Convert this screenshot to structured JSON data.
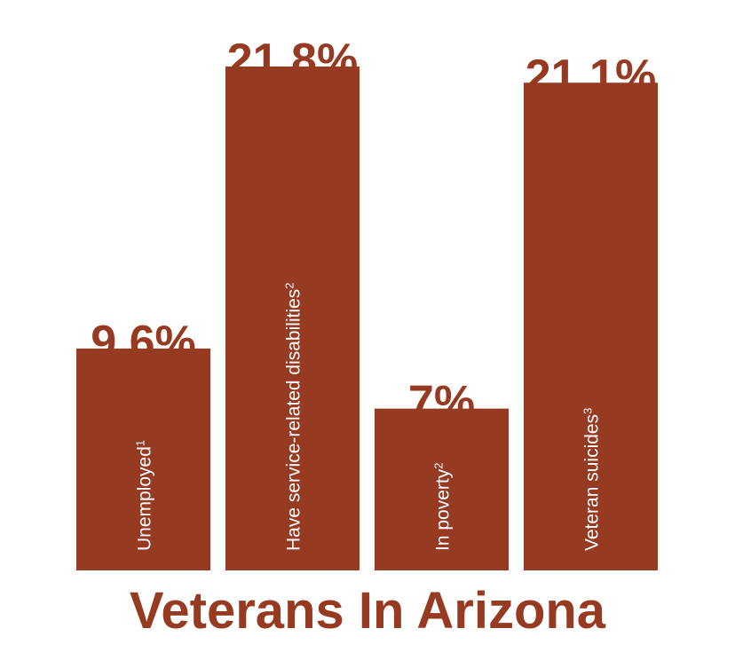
{
  "chart_data": {
    "type": "bar",
    "title": "Veterans In Arizona",
    "categories": [
      {
        "label": "Unemployed",
        "note": "1"
      },
      {
        "label": "Have service-related disabilities",
        "note": "2"
      },
      {
        "label": "In poverty",
        "note": "2"
      },
      {
        "label": "Veteran suicides",
        "note": "3"
      }
    ],
    "values": [
      9.6,
      21.8,
      7,
      21.1
    ],
    "value_labels": [
      "9.6%",
      "21.8%",
      "7%",
      "21.1%"
    ],
    "ylim": [
      0,
      21.8
    ],
    "grid": false,
    "legend": "none",
    "colors": {
      "bar": "#963a21",
      "text": "#963a21",
      "label": "#ffffff"
    }
  }
}
